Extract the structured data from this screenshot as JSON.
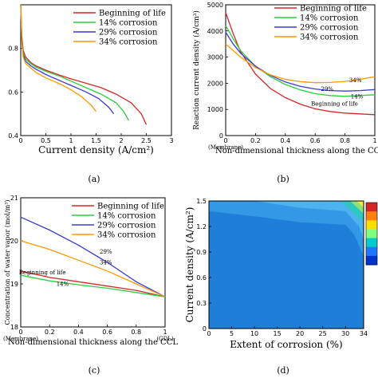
{
  "colors": {
    "beginning": "#d62728",
    "c14": "#2ecc40",
    "c29": "#3b3bd6",
    "c34": "#ff9900",
    "bol_b": "#d62728"
  },
  "chart_data": [
    {
      "panel": "(a)",
      "type": "line",
      "xlabel": "Current density (A/cm²)",
      "ylabel": "",
      "xlim": [
        0,
        3
      ],
      "ylim": [
        0.4,
        1.0
      ],
      "xticks": [
        "0",
        "0.5",
        "1",
        "1.5",
        "2",
        "2.5",
        "3"
      ],
      "yticks": [
        "0.4",
        "0.6",
        "0.8"
      ],
      "legend_position": "top-right",
      "series": [
        {
          "name": "Beginning of life",
          "color": "beginning",
          "x": [
            0,
            0.02,
            0.05,
            0.1,
            0.2,
            0.3,
            0.5,
            0.8,
            1.0,
            1.3,
            1.6,
            1.9,
            2.2,
            2.4,
            2.5
          ],
          "y": [
            1.0,
            0.86,
            0.79,
            0.76,
            0.735,
            0.72,
            0.7,
            0.675,
            0.66,
            0.64,
            0.62,
            0.59,
            0.55,
            0.5,
            0.45
          ]
        },
        {
          "name": "14% corrosion",
          "color": "c14",
          "x": [
            0,
            0.02,
            0.05,
            0.1,
            0.2,
            0.3,
            0.5,
            0.8,
            1.0,
            1.3,
            1.6,
            1.9,
            2.05,
            2.15
          ],
          "y": [
            1.0,
            0.85,
            0.78,
            0.75,
            0.73,
            0.715,
            0.695,
            0.67,
            0.65,
            0.62,
            0.59,
            0.55,
            0.51,
            0.47
          ]
        },
        {
          "name": "29% corrosion",
          "color": "c29",
          "x": [
            0,
            0.02,
            0.05,
            0.1,
            0.2,
            0.3,
            0.5,
            0.8,
            1.0,
            1.3,
            1.55,
            1.75,
            1.85
          ],
          "y": [
            1.0,
            0.84,
            0.77,
            0.74,
            0.72,
            0.705,
            0.68,
            0.65,
            0.63,
            0.6,
            0.57,
            0.53,
            0.5
          ]
        },
        {
          "name": "34% corrosion",
          "color": "c34",
          "x": [
            0,
            0.02,
            0.05,
            0.1,
            0.2,
            0.3,
            0.5,
            0.8,
            1.0,
            1.2,
            1.4,
            1.5
          ],
          "y": [
            1.0,
            0.83,
            0.76,
            0.73,
            0.71,
            0.69,
            0.665,
            0.635,
            0.61,
            0.58,
            0.54,
            0.51
          ]
        }
      ]
    },
    {
      "panel": "(b)",
      "type": "line",
      "xlabel": "Non-dimensional thickness along the CCL",
      "ylabel": "Reaction current density (A/cm³)",
      "xlim": [
        0,
        1
      ],
      "ylim": [
        0,
        5000
      ],
      "xticks": [
        "0",
        "0.2",
        "0.4",
        "0.6",
        "0.8",
        "1"
      ],
      "yticks": [
        "0",
        "1000",
        "2000",
        "3000",
        "4000",
        "5000"
      ],
      "x_left_note": "(Membrane)",
      "legend_position": "top-right",
      "annotations": [
        "Beginning of life",
        "29%",
        "34%",
        "14%"
      ],
      "series": [
        {
          "name": "Beginning of life",
          "color": "beginning",
          "x": [
            0,
            0.05,
            0.1,
            0.2,
            0.3,
            0.4,
            0.5,
            0.6,
            0.7,
            0.8,
            0.9,
            1.0
          ],
          "y": [
            4700,
            3900,
            3200,
            2350,
            1800,
            1450,
            1200,
            1020,
            920,
            860,
            830,
            800
          ]
        },
        {
          "name": "14% corrosion",
          "color": "c14",
          "x": [
            0,
            0.05,
            0.1,
            0.2,
            0.3,
            0.4,
            0.5,
            0.6,
            0.7,
            0.8,
            0.9,
            1.0
          ],
          "y": [
            4200,
            3700,
            3250,
            2650,
            2250,
            1950,
            1750,
            1600,
            1530,
            1500,
            1530,
            1560
          ]
        },
        {
          "name": "29% corrosion",
          "color": "c29",
          "x": [
            0,
            0.05,
            0.1,
            0.2,
            0.3,
            0.4,
            0.5,
            0.6,
            0.7,
            0.8,
            0.9,
            1.0
          ],
          "y": [
            3950,
            3500,
            3150,
            2650,
            2300,
            2050,
            1880,
            1780,
            1720,
            1700,
            1720,
            1760
          ]
        },
        {
          "name": "34% corrosion",
          "color": "c34",
          "x": [
            0,
            0.05,
            0.1,
            0.2,
            0.3,
            0.4,
            0.5,
            0.6,
            0.7,
            0.8,
            0.9,
            1.0
          ],
          "y": [
            3500,
            3250,
            3000,
            2600,
            2320,
            2150,
            2060,
            2020,
            2030,
            2070,
            2150,
            2250
          ]
        }
      ]
    },
    {
      "panel": "(c)",
      "type": "line",
      "xlabel": "Non-dimensional thickness along the CCL",
      "ylabel": "Concentration of water vapor (mol/m³)",
      "xlim": [
        0,
        1
      ],
      "ylim": [
        18,
        21
      ],
      "xticks": [
        "0",
        "0.2",
        "0.4",
        "0.6",
        "0.8",
        "1"
      ],
      "yticks": [
        "18",
        "19",
        "20",
        "21"
      ],
      "x_left_note": "(Membrane)",
      "x_right_note": "(GDL)",
      "legend_position": "top-right",
      "annotations": [
        "29%",
        "34%",
        "Beginning of life",
        "14%"
      ],
      "series": [
        {
          "name": "Beginning of life",
          "color": "beginning",
          "x": [
            0,
            0.2,
            0.4,
            0.6,
            0.8,
            1.0
          ],
          "y": [
            19.3,
            19.15,
            19.05,
            18.95,
            18.85,
            18.7
          ]
        },
        {
          "name": "14% corrosion",
          "color": "c14",
          "x": [
            0,
            0.2,
            0.4,
            0.6,
            0.8,
            1.0
          ],
          "y": [
            19.2,
            19.07,
            18.98,
            18.9,
            18.8,
            18.7
          ]
        },
        {
          "name": "29% corrosion",
          "color": "c29",
          "x": [
            0,
            0.2,
            0.4,
            0.6,
            0.8,
            1.0
          ],
          "y": [
            20.55,
            20.25,
            19.9,
            19.5,
            19.05,
            18.7
          ]
        },
        {
          "name": "34% corrosion",
          "color": "c34",
          "x": [
            0,
            0.2,
            0.4,
            0.6,
            0.8,
            1.0
          ],
          "y": [
            20.0,
            19.8,
            19.55,
            19.3,
            19.0,
            18.7
          ]
        }
      ]
    },
    {
      "panel": "(d)",
      "type": "heatmap",
      "xlabel": "Extent of corrosion (%)",
      "ylabel": "Current density (A/cm²)",
      "xlim": [
        0,
        34
      ],
      "ylim": [
        0,
        1.5
      ],
      "xticks": [
        "0",
        "5",
        "10",
        "15",
        "20",
        "25",
        "30",
        "34"
      ],
      "yticks": [
        "0",
        "0.3",
        "0.6",
        "0.9",
        "1.2",
        "1.5"
      ],
      "colorbar": [
        "#d62728",
        "#ff7f0e",
        "#ffdd00",
        "#7fff7f",
        "#00cccc",
        "#1f77ff",
        "#0033cc"
      ]
    }
  ],
  "legend": [
    "Beginning of life",
    "14% corrosion",
    "29% corrosion",
    "34% corrosion"
  ],
  "panel_tags": [
    "(a)",
    "(b)",
    "(c)",
    "(d)"
  ]
}
